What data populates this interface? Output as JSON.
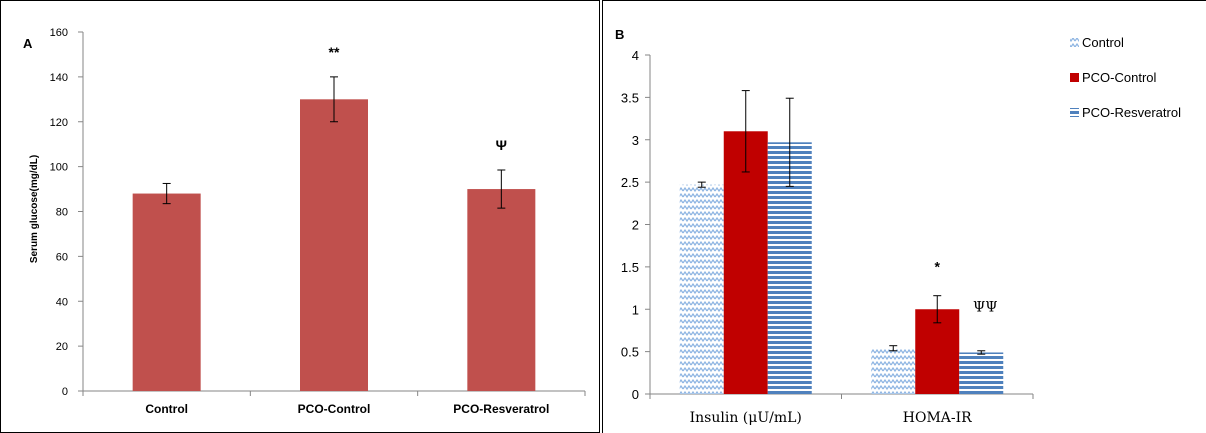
{
  "colors": {
    "bar_a": "#C0504D",
    "control_b": "#8DB4E2",
    "pco_control_b": "#C00000",
    "pco_resveratrol_b": "#4F81BD"
  },
  "chart_data": [
    {
      "type": "bar",
      "panel_label": "A",
      "title": "",
      "xlabel": "",
      "ylabel": "Serum glucose(mg/dL)",
      "ylim": [
        0,
        160
      ],
      "yticks": [
        0,
        20,
        40,
        60,
        80,
        100,
        120,
        140,
        160
      ],
      "categories": [
        "Control",
        "PCO-Control",
        "PCO-Resveratrol"
      ],
      "values": [
        88,
        130,
        90
      ],
      "errors": [
        4.5,
        10,
        8.5
      ],
      "annotations": [
        "",
        "**",
        "Ψ"
      ],
      "grid": false,
      "legend": "none"
    },
    {
      "type": "bar",
      "panel_label": "B",
      "title": "",
      "xlabel": "",
      "ylabel": "",
      "ylim": [
        0,
        4
      ],
      "yticks": [
        "0",
        "0.5",
        "1",
        "1.5",
        "2",
        "2.5",
        "3",
        "3.5",
        "4"
      ],
      "categories": [
        "Insulin (μU/mL)",
        "HOMA-IR"
      ],
      "series": [
        {
          "name": "Control",
          "values": [
            2.47,
            0.54
          ],
          "errors": [
            0.03,
            0.03
          ],
          "pattern": "zigzag"
        },
        {
          "name": "PCO-Control",
          "values": [
            3.1,
            1.0
          ],
          "errors": [
            0.48,
            0.16
          ],
          "pattern": "solid"
        },
        {
          "name": "PCO-Resveratrol",
          "values": [
            2.97,
            0.49
          ],
          "errors": [
            0.52,
            0.02
          ],
          "pattern": "horizontal-stripes"
        }
      ],
      "annotations": [
        {
          "category": "HOMA-IR",
          "series": "PCO-Control",
          "text": "*"
        },
        {
          "category": "HOMA-IR",
          "series": "PCO-Resveratrol",
          "text": "ΨΨ"
        }
      ],
      "grid": false,
      "legend": "right"
    }
  ]
}
